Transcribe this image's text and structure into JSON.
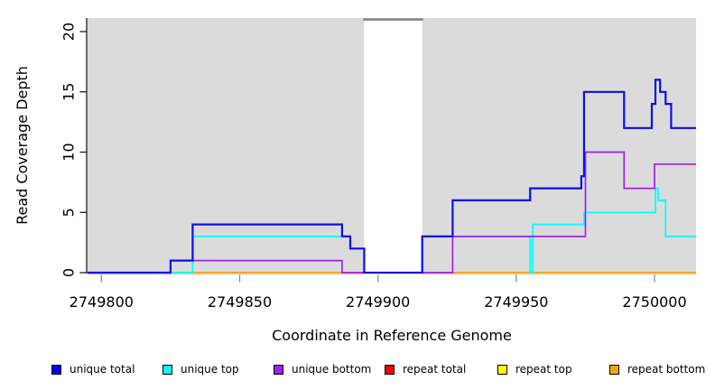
{
  "figure": {
    "background": "#ffffff",
    "panel_background": "#dbdbdb"
  },
  "chart_data": {
    "type": "line",
    "subtype": "step-coverage",
    "title": "",
    "xlabel": "Coordinate in Reference Genome",
    "ylabel": "Read Coverage Depth",
    "xlim": [
      2749795,
      2750015
    ],
    "ylim": [
      0,
      21.1
    ],
    "xticks": [
      2749800,
      2749850,
      2749900,
      2749950,
      2750000
    ],
    "yticks": [
      0,
      5,
      10,
      15,
      20
    ],
    "grid": false,
    "legend_position": "bottom",
    "gap_region": {
      "from": 2749895,
      "to": 2749916,
      "fill": "#ffffff",
      "top_bar_color": "#7d7d7d"
    },
    "axis_colors": {
      "y_axis": "#1a1a1a",
      "x_ticks": "#8a8a8a",
      "labels": "#000000"
    },
    "series": [
      {
        "name": "repeat total",
        "color": "#ff0000",
        "width": 1.6,
        "points": [
          [
            2749795,
            0
          ],
          [
            2750015,
            0
          ]
        ]
      },
      {
        "name": "repeat top",
        "color": "#ffff00",
        "width": 1.6,
        "points": [
          [
            2749795,
            0
          ],
          [
            2750015,
            0
          ]
        ]
      },
      {
        "name": "repeat bottom",
        "color": "#ffa500",
        "width": 2,
        "points": [
          [
            2749795,
            0
          ],
          [
            2750015,
            0
          ]
        ]
      },
      {
        "name": "unique top",
        "color": "#00ffff",
        "width": 1.7,
        "points": [
          [
            2749795,
            0
          ],
          [
            2749833,
            3
          ],
          [
            2749890,
            2
          ],
          [
            2749895,
            0
          ],
          [
            2749916,
            3
          ],
          [
            2749955,
            0
          ],
          [
            2749956,
            4
          ],
          [
            2749974.5,
            5
          ],
          [
            2750000.3,
            7
          ],
          [
            2750001.3,
            6
          ],
          [
            2750004,
            3
          ],
          [
            2750015,
            3
          ]
        ]
      },
      {
        "name": "unique bottom",
        "color": "#a020f0",
        "width": 1.7,
        "points": [
          [
            2749795,
            0
          ],
          [
            2749825,
            1
          ],
          [
            2749887,
            0
          ],
          [
            2749927,
            3
          ],
          [
            2749975,
            10
          ],
          [
            2749989,
            7
          ],
          [
            2750000,
            9
          ],
          [
            2750015,
            9
          ]
        ]
      },
      {
        "name": "unique total",
        "color": "#0d0dee",
        "width": 2.2,
        "points": [
          [
            2749795,
            0
          ],
          [
            2749825,
            1
          ],
          [
            2749833,
            4
          ],
          [
            2749887,
            3
          ],
          [
            2749890,
            2
          ],
          [
            2749895,
            0
          ],
          [
            2749916,
            3
          ],
          [
            2749927,
            6
          ],
          [
            2749955,
            7
          ],
          [
            2749973.5,
            8
          ],
          [
            2749974.5,
            15
          ],
          [
            2749989,
            12
          ],
          [
            2749999,
            14
          ],
          [
            2750000.3,
            16
          ],
          [
            2750002,
            15
          ],
          [
            2750004,
            14
          ],
          [
            2750006,
            12
          ],
          [
            2750015,
            12
          ]
        ]
      }
    ],
    "legend": [
      {
        "label": "unique total",
        "color": "#0000ee"
      },
      {
        "label": "unique top",
        "color": "#00ffff"
      },
      {
        "label": "unique bottom",
        "color": "#a020f0"
      },
      {
        "label": "repeat total",
        "color": "#ff0000"
      },
      {
        "label": "repeat top",
        "color": "#ffff00"
      },
      {
        "label": "repeat bottom",
        "color": "#ffa500"
      }
    ]
  }
}
